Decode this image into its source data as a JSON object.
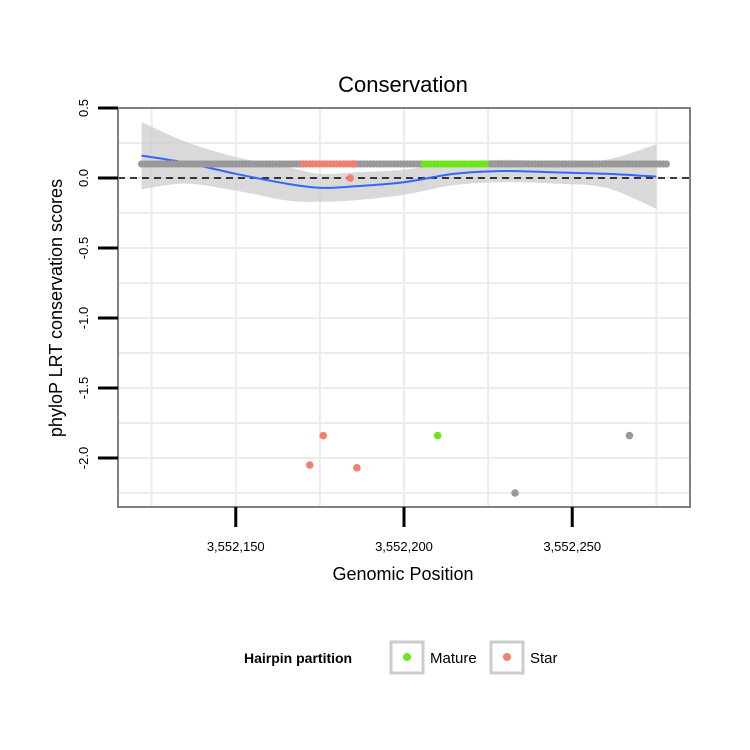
{
  "chart_data": {
    "type": "scatter",
    "title": "Conservation",
    "xlabel": "Genomic Position",
    "ylabel": "phyloP LRT conservation scores",
    "xlim": [
      3552115,
      3552285
    ],
    "ylim": [
      -2.35,
      0.5
    ],
    "x_ticks": [
      3552150,
      3552200,
      3552250
    ],
    "x_tick_labels": [
      "3,552,150",
      "3,552,200",
      "3,552,250"
    ],
    "y_ticks": [
      0.5,
      0.0,
      -0.5,
      -1.0,
      -1.5,
      -2.0
    ],
    "y_tick_labels": [
      "0.5",
      "0.0",
      "-0.5",
      "-1.0",
      "-1.5",
      "-2.0"
    ],
    "reference_line_y": 0.0,
    "grid": true,
    "legend": {
      "title": "Hairpin partition",
      "position": "bottom",
      "entries": [
        {
          "label": "Mature",
          "color": "#6ee51a"
        },
        {
          "label": "Star",
          "color": "#f08070"
        }
      ]
    },
    "colors": {
      "other": "#999999",
      "mature": "#6ee51a",
      "star": "#f08070",
      "smooth": "#3366ff",
      "band": "#cccccc",
      "panel_border": "#808080",
      "grid": "#ececec"
    },
    "baseline_points": [
      {
        "group": "other",
        "x_from": 3552122,
        "x_to": 3552170,
        "y": 0.1
      },
      {
        "group": "star",
        "x_from": 3552170,
        "x_to": 3552184,
        "y": 0.1
      },
      {
        "group": "other",
        "x_from": 3552185,
        "x_to": 3552205,
        "y": 0.1
      },
      {
        "group": "mature",
        "x_from": 3552206,
        "x_to": 3552225,
        "y": 0.1
      },
      {
        "group": "other",
        "x_from": 3552226,
        "x_to": 3552278,
        "y": 0.1
      }
    ],
    "points": [
      {
        "x": 3552185,
        "y": 0.1,
        "group": "star"
      },
      {
        "x": 3552184,
        "y": 0.0,
        "group": "star"
      },
      {
        "x": 3552172,
        "y": -2.05,
        "group": "star"
      },
      {
        "x": 3552176,
        "y": -1.84,
        "group": "star"
      },
      {
        "x": 3552186,
        "y": -2.07,
        "group": "star"
      },
      {
        "x": 3552210,
        "y": -1.84,
        "group": "mature"
      },
      {
        "x": 3552233,
        "y": -2.25,
        "group": "other"
      },
      {
        "x": 3552267,
        "y": -1.84,
        "group": "other"
      }
    ],
    "smooth": {
      "x": [
        3552122,
        3552135,
        3552150,
        3552165,
        3552175,
        3552185,
        3552200,
        3552215,
        3552230,
        3552245,
        3552260,
        3552275
      ],
      "y": [
        0.16,
        0.11,
        0.03,
        -0.04,
        -0.07,
        -0.06,
        -0.03,
        0.03,
        0.05,
        0.04,
        0.03,
        0.01
      ],
      "lower": [
        -0.08,
        -0.04,
        -0.09,
        -0.16,
        -0.17,
        -0.16,
        -0.12,
        -0.05,
        -0.03,
        -0.04,
        -0.07,
        -0.22
      ],
      "upper": [
        0.4,
        0.26,
        0.15,
        0.08,
        0.03,
        0.04,
        0.06,
        0.11,
        0.13,
        0.12,
        0.13,
        0.24
      ]
    }
  }
}
